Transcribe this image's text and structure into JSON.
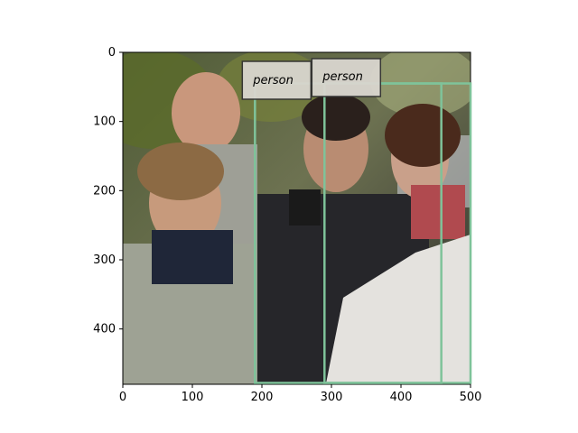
{
  "image": {
    "description_colors": {
      "box_stroke": "#7fc39a",
      "label_bg": "#d9d6cf",
      "label_border": "#333333"
    }
  },
  "axes": {
    "x_range": [
      0,
      500
    ],
    "y_range": [
      0,
      480
    ],
    "y_inverted": true,
    "x_ticks": [
      0,
      100,
      200,
      300,
      400,
      500
    ],
    "y_ticks": [
      0,
      100,
      200,
      300,
      400
    ]
  },
  "detections": [
    {
      "label": "person",
      "bbox_data": [
        190,
        45,
        458,
        478
      ]
    },
    {
      "label": "person",
      "bbox_data": [
        290,
        45,
        500,
        478
      ]
    }
  ]
}
